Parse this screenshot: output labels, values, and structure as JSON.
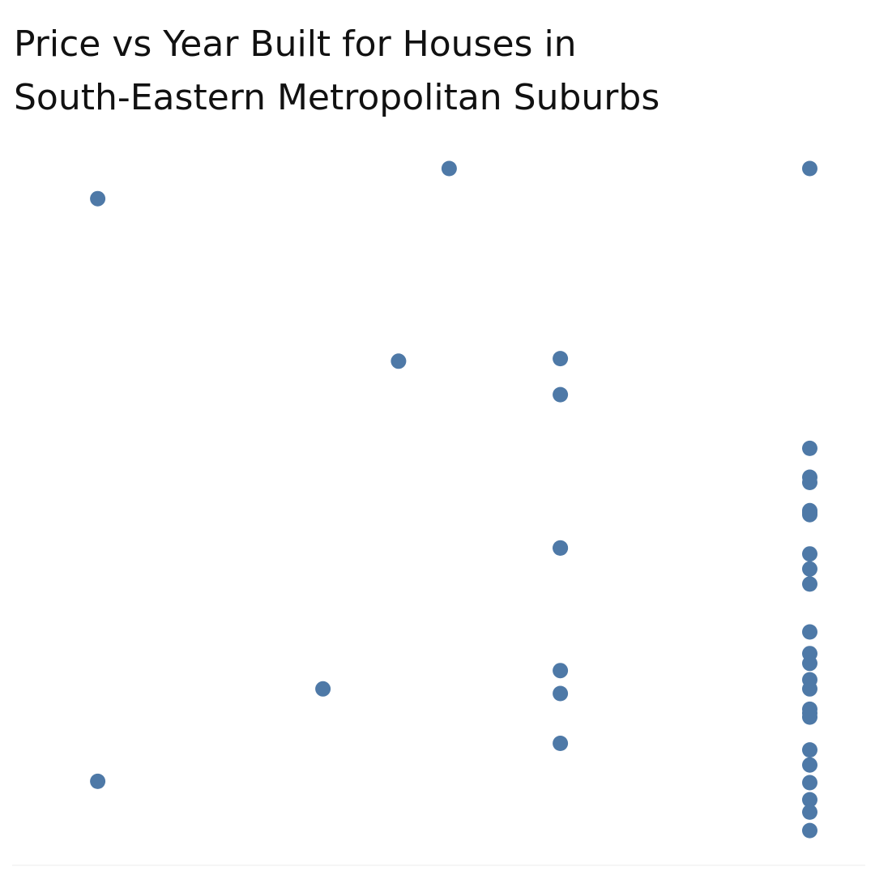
{
  "title": {
    "line1": "Price vs Year Built for Houses in",
    "line2": "South-Eastern Metropolitan Suburbs"
  },
  "colors": {
    "point": "#4e79a7",
    "baseline": "#eeeeee"
  },
  "chart_data": {
    "type": "scatter",
    "title": "Price vs Year Built for Houses in South-Eastern Metropolitan Suburbs",
    "xlabel": "",
    "ylabel": "",
    "grid": false,
    "xlim": [
      0,
      100
    ],
    "ylim": [
      0,
      100
    ],
    "points": [
      {
        "x": 5.1,
        "y": 95.4
      },
      {
        "x": 5.1,
        "y": 6.5
      },
      {
        "x": 34.9,
        "y": 20.6
      },
      {
        "x": 44.9,
        "y": 70.6
      },
      {
        "x": 51.6,
        "y": 100.0
      },
      {
        "x": 66.3,
        "y": 71.0
      },
      {
        "x": 66.3,
        "y": 65.5
      },
      {
        "x": 66.3,
        "y": 42.1
      },
      {
        "x": 66.3,
        "y": 23.4
      },
      {
        "x": 66.3,
        "y": 19.9
      },
      {
        "x": 66.3,
        "y": 42.1
      },
      {
        "x": 66.3,
        "y": 12.3
      },
      {
        "x": 99.3,
        "y": 100.0
      },
      {
        "x": 99.3,
        "y": 57.3
      },
      {
        "x": 99.3,
        "y": 52.9
      },
      {
        "x": 99.3,
        "y": 52.1
      },
      {
        "x": 99.3,
        "y": 47.8
      },
      {
        "x": 99.3,
        "y": 47.2
      },
      {
        "x": 99.3,
        "y": 41.2
      },
      {
        "x": 99.3,
        "y": 38.9
      },
      {
        "x": 99.3,
        "y": 36.6
      },
      {
        "x": 99.3,
        "y": 29.3
      },
      {
        "x": 99.3,
        "y": 26.0
      },
      {
        "x": 99.3,
        "y": 17.5
      },
      {
        "x": 99.3,
        "y": 16.3
      },
      {
        "x": 99.3,
        "y": 11.3
      },
      {
        "x": 99.3,
        "y": 9.0
      },
      {
        "x": 99.3,
        "y": 6.3
      },
      {
        "x": 99.3,
        "y": 3.7
      },
      {
        "x": 99.3,
        "y": 16.9
      },
      {
        "x": 99.3,
        "y": 20.6
      },
      {
        "x": 99.3,
        "y": 22.0
      },
      {
        "x": 99.3,
        "y": 24.5
      },
      {
        "x": 99.3,
        "y": 1.8
      },
      {
        "x": 99.3,
        "y": -1.0
      },
      {
        "x": 99.3,
        "y": 47.5
      }
    ]
  }
}
